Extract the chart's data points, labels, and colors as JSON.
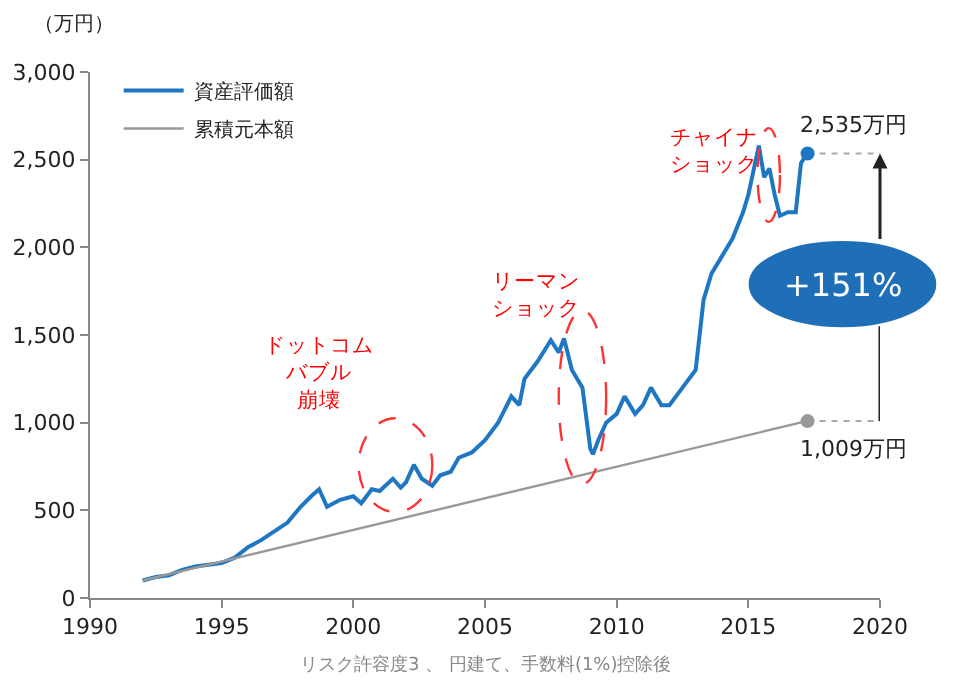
{
  "chart_data": {
    "type": "line",
    "ylabel": "（万円）",
    "xlim": [
      1990,
      2020
    ],
    "xticks": [
      1990,
      1995,
      2000,
      2005,
      2010,
      2015,
      2020
    ],
    "ylim": [
      0,
      3000
    ],
    "yticks": [
      0,
      500,
      {
        "value": 1000,
        "label": "1,000"
      },
      {
        "value": 1500,
        "label": "1,500"
      },
      {
        "value": 2000,
        "label": "2,000"
      },
      {
        "value": 2500,
        "label": "2,500"
      },
      {
        "value": 3000,
        "label": "3,000"
      }
    ],
    "grid": false,
    "legend": "top left",
    "line_style": "solid",
    "series": [
      {
        "name": "資産評価額",
        "color": "#1f77c4",
        "x": [
          1992,
          1992.5,
          1993,
          1993.5,
          1994,
          1994.5,
          1995,
          1995.5,
          1996,
          1996.5,
          1997,
          1997.5,
          1998,
          1998.4,
          1998.7,
          1999,
          1999.5,
          2000,
          2000.3,
          2000.7,
          2001,
          2001.5,
          2001.8,
          2002,
          2002.3,
          2002.6,
          2003,
          2003.3,
          2003.7,
          2004,
          2004.5,
          2005,
          2005.5,
          2006,
          2006.3,
          2006.5,
          2007,
          2007.5,
          2007.8,
          2008,
          2008.3,
          2008.7,
          2009,
          2009.1,
          2009.3,
          2009.6,
          2010,
          2010.3,
          2010.7,
          2011,
          2011.3,
          2011.7,
          2012,
          2012.5,
          2013,
          2013.3,
          2013.6,
          2014,
          2014.4,
          2014.8,
          2015,
          2015.4,
          2015.6,
          2015.8,
          2016,
          2016.2,
          2016.5,
          2016.8,
          2017,
          2017.25
        ],
        "values": [
          100,
          120,
          130,
          160,
          180,
          190,
          200,
          230,
          290,
          330,
          380,
          430,
          520,
          580,
          620,
          520,
          560,
          580,
          540,
          620,
          610,
          680,
          630,
          660,
          760,
          680,
          640,
          700,
          720,
          800,
          830,
          900,
          1000,
          1150,
          1100,
          1250,
          1350,
          1470,
          1400,
          1480,
          1300,
          1200,
          850,
          820,
          900,
          1000,
          1050,
          1150,
          1050,
          1100,
          1200,
          1100,
          1100,
          1200,
          1300,
          1700,
          1850,
          1950,
          2050,
          2200,
          2300,
          2580,
          2400,
          2450,
          2300,
          2180,
          2200,
          2200,
          2480,
          2540
        ]
      },
      {
        "name": "累積元本額",
        "color": "#999999",
        "x": [
          1992,
          2017.25
        ],
        "values": [
          100,
          1010
        ]
      }
    ],
    "annotations": [
      {
        "text": "2,535万円",
        "x": 2017.25,
        "y": 2535
      },
      {
        "text": "1,009万円",
        "x": 2017.25,
        "y": 1009
      },
      "+151%",
      "ドットコムバブル崩壊",
      "リーマンショック",
      "チャイナショック",
      "リスク許容度3 、 円建て、手数料(1%)控除後"
    ]
  }
}
